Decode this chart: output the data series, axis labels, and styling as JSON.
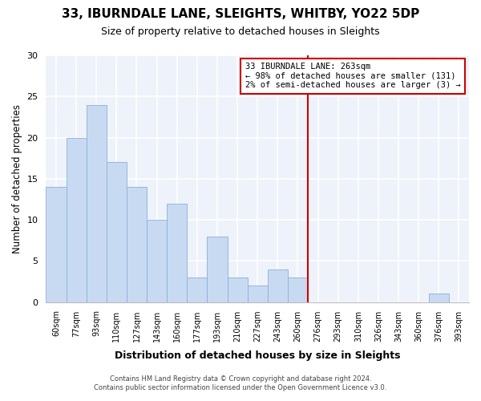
{
  "title": "33, IBURNDALE LANE, SLEIGHTS, WHITBY, YO22 5DP",
  "subtitle": "Size of property relative to detached houses in Sleights",
  "xlabel": "Distribution of detached houses by size in Sleights",
  "ylabel": "Number of detached properties",
  "bar_color": "#c8daf2",
  "bar_edge_color": "#8ab0d8",
  "categories": [
    "60sqm",
    "77sqm",
    "93sqm",
    "110sqm",
    "127sqm",
    "143sqm",
    "160sqm",
    "177sqm",
    "193sqm",
    "210sqm",
    "227sqm",
    "243sqm",
    "260sqm",
    "276sqm",
    "293sqm",
    "310sqm",
    "326sqm",
    "343sqm",
    "360sqm",
    "376sqm",
    "393sqm"
  ],
  "values": [
    14,
    20,
    24,
    17,
    14,
    10,
    12,
    3,
    8,
    3,
    2,
    4,
    3,
    0,
    0,
    0,
    0,
    0,
    0,
    1,
    0
  ],
  "ylim": [
    0,
    30
  ],
  "yticks": [
    0,
    5,
    10,
    15,
    20,
    25,
    30
  ],
  "property_line_index": 12,
  "property_line_label": "33 IBURNDALE LANE: 263sqm",
  "legend_line1": "← 98% of detached houses are smaller (131)",
  "legend_line2": "2% of semi-detached houses are larger (3) →",
  "vline_color": "#cc0000",
  "box_facecolor": "#ffffff",
  "box_edgecolor": "#cc0000",
  "footer1": "Contains HM Land Registry data © Crown copyright and database right 2024.",
  "footer2": "Contains public sector information licensed under the Open Government Licence v3.0.",
  "bg_color": "#eef2fa"
}
